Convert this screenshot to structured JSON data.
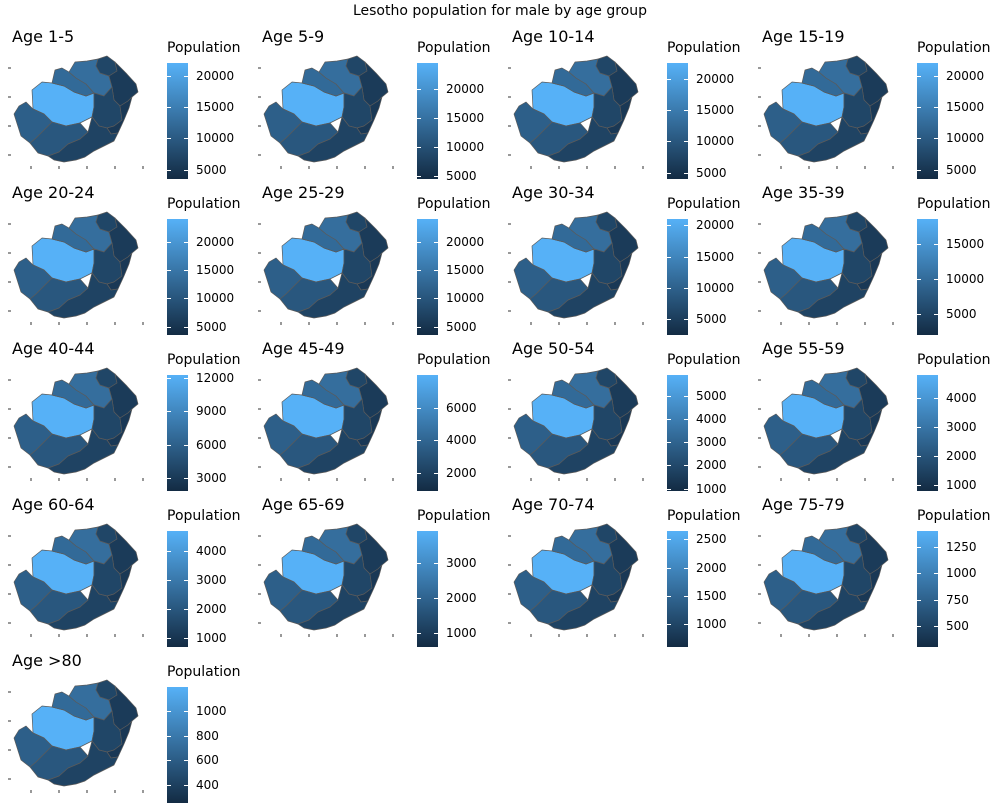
{
  "title": "Lesotho population for male by age group",
  "colors": {
    "low": "#132B43",
    "high": "#56B1F7",
    "border": "#5a5a5a"
  },
  "chart_data": {
    "type": "choropleth",
    "region": "Lesotho districts",
    "legend_title": "Population",
    "panels": [
      {
        "title": "Age 1-5",
        "range": [
          3500,
          22000
        ],
        "ticks": [
          5000,
          10000,
          15000,
          20000
        ]
      },
      {
        "title": "Age 5-9",
        "range": [
          4500,
          24500
        ],
        "ticks": [
          5000,
          10000,
          15000,
          20000
        ]
      },
      {
        "title": "Age 10-14",
        "range": [
          4000,
          22500
        ],
        "ticks": [
          5000,
          10000,
          15000,
          20000
        ]
      },
      {
        "title": "Age 15-19",
        "range": [
          3500,
          22000
        ],
        "ticks": [
          5000,
          10000,
          15000,
          20000
        ]
      },
      {
        "title": "Age 20-24",
        "range": [
          3500,
          24000
        ],
        "ticks": [
          5000,
          10000,
          15000,
          20000
        ]
      },
      {
        "title": "Age 25-29",
        "range": [
          3500,
          24000
        ],
        "ticks": [
          5000,
          10000,
          15000,
          20000
        ]
      },
      {
        "title": "Age 30-34",
        "range": [
          2500,
          21000
        ],
        "ticks": [
          5000,
          10000,
          15000,
          20000
        ]
      },
      {
        "title": "Age 35-39",
        "range": [
          2000,
          18500
        ],
        "ticks": [
          5000,
          10000,
          15000
        ]
      },
      {
        "title": "Age 40-44",
        "range": [
          1800,
          12300
        ],
        "ticks": [
          3000,
          6000,
          9000,
          12000
        ]
      },
      {
        "title": "Age 45-49",
        "range": [
          900,
          8000
        ],
        "ticks": [
          2000,
          4000,
          6000
        ]
      },
      {
        "title": "Age 50-54",
        "range": [
          900,
          5900
        ],
        "ticks": [
          1000,
          2000,
          3000,
          4000,
          5000
        ]
      },
      {
        "title": "Age 55-59",
        "range": [
          800,
          4800
        ],
        "ticks": [
          1000,
          2000,
          3000,
          4000
        ]
      },
      {
        "title": "Age 60-64",
        "range": [
          700,
          4700
        ],
        "ticks": [
          1000,
          2000,
          3000,
          4000
        ]
      },
      {
        "title": "Age 65-69",
        "range": [
          600,
          3900
        ],
        "ticks": [
          1000,
          2000,
          3000
        ]
      },
      {
        "title": "Age 70-74",
        "range": [
          600,
          2650
        ],
        "ticks": [
          1000,
          1500,
          2000,
          2500
        ]
      },
      {
        "title": "Age 75-79",
        "range": [
          300,
          1400
        ],
        "ticks": [
          500,
          750,
          1000,
          1250
        ]
      },
      {
        "title": "Age >80",
        "range": [
          250,
          1200
        ],
        "ticks": [
          400,
          600,
          800,
          1000
        ]
      }
    ],
    "district_shares": {
      "maseru": 1.0,
      "leribe": 0.5,
      "berea": 0.47,
      "mafeteng": 0.39,
      "mohales-hoek": 0.33,
      "quthing": 0.18,
      "qachas-nek": 0.1,
      "mokhotlong": 0.12,
      "thaba-tseka": 0.2,
      "butha-buthe": 0.2
    }
  }
}
